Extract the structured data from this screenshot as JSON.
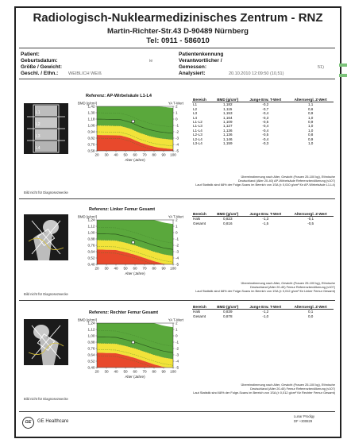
{
  "header": {
    "title": "Radiologisch-Nuklearmedizinisches Zentrum - RNZ",
    "address": "Martin-Richter-Str.43   D-90489 Nürnberg",
    "phone": "Tel: 0911 - 586010"
  },
  "patient": {
    "labels_left": [
      "Patient:",
      "Geburtsdatum:",
      "Größe / Gewicht:",
      "Geschl. / Ethn.:"
    ],
    "labels_right": [
      "Patientenkennung",
      "Verantwortlicher /",
      "Gemessen:",
      "Analysiert:"
    ],
    "sex_ethn_value": "WEIBLICH   WEIß",
    "birth_value": "ie",
    "measured_value": "51)",
    "analyzed_value": "20.10.2010   12:09:50   (10,51)"
  },
  "scans": [
    {
      "chart_title": "Referenz: AP-Wirbelsäule L1-L4",
      "scan_labels": [
        "L1",
        "L2",
        "L3",
        "L4"
      ],
      "table": {
        "headers": [
          "Bereich",
          "BMD (g/cm²)",
          "Junge Erw. T-Wert",
          "Altersvergl. Z-Wert"
        ],
        "rows": [
          [
            "L1",
            "1,182",
            "-0,2",
            "1,1"
          ],
          [
            "L2",
            "1,115",
            "-0,7",
            "0,6"
          ],
          [
            "L3",
            "1,153",
            "-0,4",
            "0,9"
          ],
          [
            "L4",
            "1,164",
            "-0,3",
            "1,0"
          ],
          [
            "L1-L2",
            "1,109",
            "-0,5",
            "0,9"
          ],
          [
            "L1-L3",
            "1,127",
            "-0,4",
            "1,0"
          ],
          [
            "L1-L4",
            "1,136",
            "-0,4",
            "1,0"
          ],
          [
            "L2-L3",
            "1,136",
            "-0,5",
            "0,8"
          ],
          [
            "L2-L4",
            "1,146",
            "-0,4",
            "0,9"
          ],
          [
            "L3-L4",
            "1,159",
            "-0,3",
            "1,0"
          ]
        ]
      },
      "notes": [
        "Übereinstimmung nach Alter, Gewicht (Frauen 25-100 kg), Ethnische",
        "Deutschland (Alter 20-40) AP-Wirbelsäule Referenzbevölkerung (v107)",
        "Laut Statistik sind 68% der Folge-Scans im Bereich von 1SA (± 0,010 g/cm² für AP-Wirbelsäule L1-L4)"
      ],
      "caption": "Bild nicht für Diagnosezwecke"
    },
    {
      "chart_title": "Referenz: Linker Femur Gesamt",
      "scan_labels": [],
      "table": {
        "headers": [
          "Bereich",
          "BMD (g/cm²)",
          "Junge Erw. T-Wert",
          "Altersvergl. Z-Wert"
        ],
        "rows": [
          [
            "Hals",
            "0,823",
            "-1,3",
            "-0,1"
          ],
          [
            "Gesamt",
            "0,816",
            "-1,5",
            "-0,5"
          ]
        ]
      },
      "notes": [
        "Übereinstimmung nach Alter, Gewicht (Frauen 25-100 kg), Ethnische",
        "Deutschland (Alter 20-40) Femur Referenzbevölkerung (v107)",
        "Laut Statistik sind 68% der Folge-Scans im Bereich von 1SA (± 0,012 g/cm² für Linker Femur Gesamt)"
      ],
      "caption": "Bild nicht für Diagnosezwecke"
    },
    {
      "chart_title": "Referenz: Rechter Femur Gesamt",
      "scan_labels": [],
      "table": {
        "headers": [
          "Bereich",
          "BMD (g/cm²)",
          "Junge Erw. T-Wert",
          "Altersvergl. Z-Wert"
        ],
        "rows": [
          [
            "Hals",
            "0,839",
            "-1,2",
            "0,1"
          ],
          [
            "Gesamt",
            "0,878",
            "-1,0",
            "0,0"
          ]
        ]
      },
      "notes": [
        "Übereinstimmung nach Alter, Gewicht (Frauen 25-100 kg), Ethnische",
        "Deutschland (Alter 20-40) Femur Referenzbevölkerung (v107)",
        "Laut Statistik sind 68% der Folge-Scans im Bereich von 1SA (± 0,012 g/cm² für Rechter Femur Gesamt)"
      ],
      "caption": "Bild nicht für Diagnosezwecke"
    }
  ],
  "chart_data": [
    {
      "type": "area",
      "title": "Referenz: AP-Wirbelsäule L1-L4",
      "xlabel": "Alter (Jahre)",
      "ylabel": "BMD (g/cm²)",
      "y2label": "YA T-Wert",
      "xlim": [
        20,
        100
      ],
      "x_ticks": [
        "20",
        "30",
        "40",
        "50",
        "60",
        "70",
        "80",
        "90",
        "100"
      ],
      "ylim": [
        0.58,
        1.42
      ],
      "y_ticks": [
        "1,42",
        "1,30",
        "1,18",
        "1,06",
        "0,94",
        "0,82",
        "0,70",
        "0,58"
      ],
      "t_ticks": [
        "2",
        "1",
        "0",
        "-1",
        "-2",
        "-3",
        "-4",
        "-5"
      ],
      "zones": [
        {
          "color": "#5aa83c",
          "upper_t": 4,
          "lower_t": -1
        },
        {
          "color": "#f2e33a",
          "upper_t": -1,
          "lower_t": -2.5
        },
        {
          "color": "#e8492c",
          "upper_t": -2.5,
          "lower_t": -6
        }
      ],
      "reference_curve": {
        "x": [
          20,
          45,
          55,
          65,
          75,
          85,
          100
        ],
        "y": [
          1.18,
          1.17,
          1.12,
          1.04,
          0.98,
          0.94,
          0.91
        ]
      },
      "patient_point": {
        "x": 58,
        "y": 1.136
      }
    },
    {
      "type": "area",
      "title": "Referenz: Linker Femur Gesamt",
      "xlabel": "Alter (Jahre)",
      "ylabel": "BMD (g/cm²)",
      "y2label": "YA T-Wert",
      "xlim": [
        20,
        100
      ],
      "x_ticks": [
        "20",
        "30",
        "40",
        "50",
        "60",
        "70",
        "80",
        "90",
        "100"
      ],
      "ylim": [
        0.4,
        1.24
      ],
      "y_ticks": [
        "1,24",
        "1,12",
        "1,00",
        "0,88",
        "0,76",
        "0,64",
        "0,52",
        "0,40"
      ],
      "t_ticks": [
        "2",
        "1",
        "0",
        "-1",
        "-2",
        "-3",
        "-4",
        "-5"
      ],
      "zones": [
        {
          "color": "#5aa83c",
          "upper_t": 4,
          "lower_t": -1
        },
        {
          "color": "#f2e33a",
          "upper_t": -1,
          "lower_t": -2.5
        },
        {
          "color": "#e8492c",
          "upper_t": -2.5,
          "lower_t": -6
        }
      ],
      "reference_curve": {
        "x": [
          20,
          40,
          50,
          60,
          70,
          80,
          90,
          100
        ],
        "y": [
          0.98,
          0.97,
          0.93,
          0.88,
          0.82,
          0.76,
          0.71,
          0.68
        ]
      },
      "patient_point": {
        "x": 58,
        "y": 0.816
      }
    },
    {
      "type": "area",
      "title": "Referenz: Rechter Femur Gesamt",
      "xlabel": "Alter (Jahre)",
      "ylabel": "BMD (g/cm²)",
      "y2label": "YA T-Wert",
      "xlim": [
        20,
        100
      ],
      "x_ticks": [
        "20",
        "30",
        "40",
        "50",
        "60",
        "70",
        "80",
        "90",
        "100"
      ],
      "ylim": [
        0.4,
        1.24
      ],
      "y_ticks": [
        "1,24",
        "1,12",
        "1,00",
        "0,88",
        "0,76",
        "0,64",
        "0,52",
        "0,40"
      ],
      "t_ticks": [
        "2",
        "1",
        "0",
        "-1",
        "-2",
        "-3",
        "-4",
        "-5"
      ],
      "zones": [
        {
          "color": "#5aa83c",
          "upper_t": 4,
          "lower_t": -1
        },
        {
          "color": "#f2e33a",
          "upper_t": -1,
          "lower_t": -2.5
        },
        {
          "color": "#e8492c",
          "upper_t": -2.5,
          "lower_t": -6
        }
      ],
      "reference_curve": {
        "x": [
          20,
          40,
          50,
          60,
          70,
          80,
          90,
          100
        ],
        "y": [
          0.98,
          0.97,
          0.93,
          0.88,
          0.82,
          0.76,
          0.71,
          0.68
        ]
      },
      "patient_point": {
        "x": 58,
        "y": 0.878
      }
    }
  ],
  "footer": {
    "brand": "GE Healthcare",
    "logo_text": "GE",
    "device": "Lunar Prodigy",
    "device_id": "DF +300829"
  },
  "colors": {
    "green": "#5aa83c",
    "yellow": "#f2e33a",
    "red": "#e8492c",
    "tab": "#7cc27a"
  }
}
